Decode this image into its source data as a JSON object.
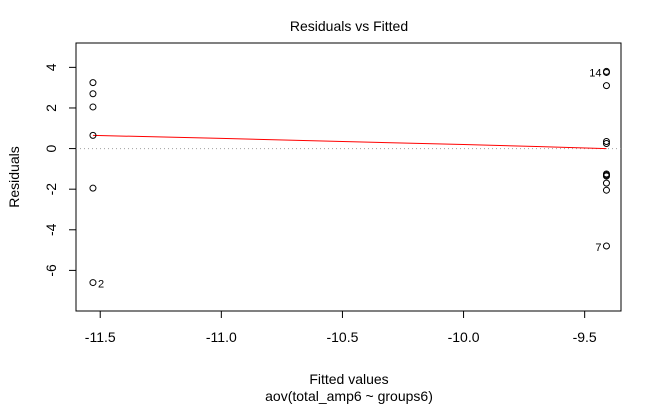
{
  "chart_data": {
    "type": "scatter",
    "title": "Residuals vs Fitted",
    "xlabel": "Fitted values",
    "subtitle": "aov(total_amp6 ~ groups6)",
    "ylabel": "Residuals",
    "xlim": [
      -11.6,
      -9.35
    ],
    "ylim": [
      -8.0,
      5.2
    ],
    "x_ticks": [
      -11.5,
      -11.0,
      -10.5,
      -10.0,
      -9.5
    ],
    "x_tick_labels": [
      "-11.5",
      "-11.0",
      "-10.5",
      "-10.0",
      "-9.5"
    ],
    "y_ticks": [
      -6,
      -4,
      -2,
      0,
      2,
      4
    ],
    "y_tick_labels": [
      "-6",
      "-4",
      "-2",
      "0",
      "2",
      "4"
    ],
    "points": [
      {
        "x": -11.53,
        "y": 3.25
      },
      {
        "x": -11.53,
        "y": 2.7
      },
      {
        "x": -11.53,
        "y": 2.05
      },
      {
        "x": -11.53,
        "y": 0.65
      },
      {
        "x": -11.53,
        "y": -1.95
      },
      {
        "x": -11.53,
        "y": -6.6
      },
      {
        "x": -9.41,
        "y": 3.8
      },
      {
        "x": -9.41,
        "y": 3.75
      },
      {
        "x": -9.41,
        "y": 3.1
      },
      {
        "x": -9.41,
        "y": 0.35
      },
      {
        "x": -9.41,
        "y": 0.25
      },
      {
        "x": -9.41,
        "y": -1.25
      },
      {
        "x": -9.41,
        "y": -1.3
      },
      {
        "x": -9.41,
        "y": -1.35
      },
      {
        "x": -9.41,
        "y": -1.7
      },
      {
        "x": -9.41,
        "y": -2.05
      },
      {
        "x": -9.41,
        "y": -4.8
      }
    ],
    "point_labels": [
      {
        "text": "14",
        "x": -9.41,
        "y": 3.8,
        "side": "left"
      },
      {
        "text": "7",
        "x": -9.41,
        "y": -4.8,
        "side": "left"
      },
      {
        "text": "2",
        "x": -11.53,
        "y": -6.6,
        "side": "right"
      }
    ],
    "smooth_line": {
      "color": "#ff0000",
      "x": [
        -11.53,
        -11.0,
        -10.5,
        -10.0,
        -9.7,
        -9.41
      ],
      "y": [
        0.65,
        0.5,
        0.35,
        0.2,
        0.1,
        0.0
      ]
    },
    "reference_line": {
      "y": 0,
      "color": "#a0a0a0",
      "style": "dotted"
    },
    "grid": false,
    "legend": "none"
  }
}
